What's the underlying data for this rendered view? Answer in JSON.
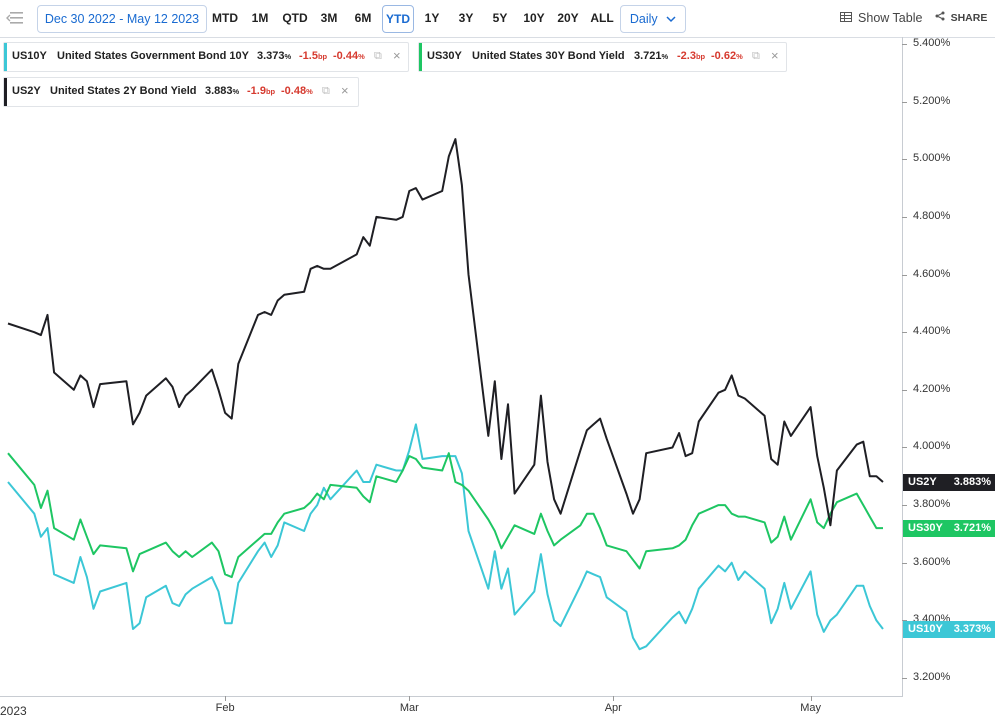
{
  "toolbar": {
    "date_range": "Dec 30 2022 - May 12 2023",
    "periods": [
      "MTD",
      "1M",
      "QTD",
      "3M",
      "6M",
      "YTD",
      "1Y",
      "3Y",
      "5Y",
      "10Y",
      "20Y",
      "ALL"
    ],
    "active_period": "YTD",
    "interval": "Daily",
    "show_table": "Show Table",
    "share": "SHARE"
  },
  "legend": [
    {
      "symbol": "US10Y",
      "name": "United States Government Bond 10Y",
      "value": "3.373",
      "change": "-1.5",
      "change_unit": "bp",
      "pct": "-0.44",
      "color": "#3cc7d6"
    },
    {
      "symbol": "US30Y",
      "name": "United States 30Y Bond Yield",
      "value": "3.721",
      "change": "-2.3",
      "change_unit": "bp",
      "pct": "-0.62",
      "color": "#1ec663"
    },
    {
      "symbol": "US2Y",
      "name": "United States 2Y Bond Yield",
      "value": "3.883",
      "change": "-1.9",
      "change_unit": "bp",
      "pct": "-0.48",
      "color": "#1f1f24"
    }
  ],
  "badges": [
    {
      "symbol": "US2Y",
      "value": "3.883%",
      "color": "#1f1f24"
    },
    {
      "symbol": "US30Y",
      "value": "3.721%",
      "color": "#1ec663"
    },
    {
      "symbol": "US10Y",
      "value": "3.373%",
      "color": "#3cc7d6"
    }
  ],
  "year_label": "2023",
  "chart_data": {
    "type": "line",
    "y_tick_labels": [
      "3.200%",
      "3.400%",
      "3.600%",
      "3.800%",
      "4.000%",
      "4.200%",
      "4.400%",
      "4.600%",
      "4.800%",
      "5.000%",
      "5.200%",
      "5.400%"
    ],
    "x_tick_labels": [
      "Feb",
      "Mar",
      "Apr",
      "May"
    ],
    "ylim": [
      3.2,
      5.4
    ],
    "grid": false,
    "x_dates": [
      "2022-12-30",
      "2023-01-03",
      "2023-01-04",
      "2023-01-05",
      "2023-01-06",
      "2023-01-09",
      "2023-01-10",
      "2023-01-11",
      "2023-01-12",
      "2023-01-13",
      "2023-01-17",
      "2023-01-18",
      "2023-01-19",
      "2023-01-20",
      "2023-01-23",
      "2023-01-24",
      "2023-01-25",
      "2023-01-26",
      "2023-01-27",
      "2023-01-30",
      "2023-01-31",
      "2023-02-01",
      "2023-02-02",
      "2023-02-03",
      "2023-02-06",
      "2023-02-07",
      "2023-02-08",
      "2023-02-09",
      "2023-02-10",
      "2023-02-13",
      "2023-02-14",
      "2023-02-15",
      "2023-02-16",
      "2023-02-17",
      "2023-02-21",
      "2023-02-22",
      "2023-02-23",
      "2023-02-24",
      "2023-02-27",
      "2023-02-28",
      "2023-03-01",
      "2023-03-02",
      "2023-03-03",
      "2023-03-06",
      "2023-03-07",
      "2023-03-08",
      "2023-03-09",
      "2023-03-10",
      "2023-03-13",
      "2023-03-14",
      "2023-03-15",
      "2023-03-16",
      "2023-03-17",
      "2023-03-20",
      "2023-03-21",
      "2023-03-22",
      "2023-03-23",
      "2023-03-24",
      "2023-03-27",
      "2023-03-28",
      "2023-03-29",
      "2023-03-30",
      "2023-03-31",
      "2023-04-03",
      "2023-04-04",
      "2023-04-05",
      "2023-04-06",
      "2023-04-10",
      "2023-04-11",
      "2023-04-12",
      "2023-04-13",
      "2023-04-14",
      "2023-04-17",
      "2023-04-18",
      "2023-04-19",
      "2023-04-20",
      "2023-04-21",
      "2023-04-24",
      "2023-04-25",
      "2023-04-26",
      "2023-04-27",
      "2023-04-28",
      "2023-05-01",
      "2023-05-02",
      "2023-05-03",
      "2023-05-04",
      "2023-05-05",
      "2023-05-08",
      "2023-05-09",
      "2023-05-10",
      "2023-05-11",
      "2023-05-12"
    ],
    "series": [
      {
        "name": "US2Y",
        "color": "#1f1f24",
        "values": [
          4.43,
          4.4,
          4.39,
          4.46,
          4.26,
          4.2,
          4.25,
          4.23,
          4.14,
          4.22,
          4.23,
          4.08,
          4.12,
          4.18,
          4.24,
          4.21,
          4.14,
          4.18,
          4.2,
          4.27,
          4.2,
          4.12,
          4.1,
          4.29,
          4.46,
          4.47,
          4.46,
          4.51,
          4.53,
          4.54,
          4.62,
          4.63,
          4.62,
          4.62,
          4.67,
          4.73,
          4.7,
          4.8,
          4.79,
          4.8,
          4.89,
          4.9,
          4.86,
          4.89,
          5.01,
          5.07,
          4.91,
          4.6,
          4.04,
          4.23,
          3.96,
          4.15,
          3.84,
          3.94,
          4.18,
          3.95,
          3.82,
          3.77,
          3.99,
          4.06,
          4.08,
          4.1,
          4.03,
          3.84,
          3.77,
          3.82,
          3.98,
          4.0,
          4.05,
          3.97,
          3.98,
          4.09,
          4.19,
          4.2,
          4.25,
          4.18,
          4.17,
          4.11,
          3.96,
          3.94,
          4.09,
          4.04,
          4.14,
          3.97,
          3.86,
          3.73,
          3.92,
          4.01,
          4.02,
          3.9,
          3.9,
          3.88
        ]
      },
      {
        "name": "US30Y",
        "color": "#1ec663",
        "values": [
          3.98,
          3.87,
          3.79,
          3.85,
          3.72,
          3.68,
          3.75,
          3.69,
          3.63,
          3.66,
          3.65,
          3.57,
          3.63,
          3.64,
          3.67,
          3.64,
          3.62,
          3.64,
          3.62,
          3.67,
          3.64,
          3.56,
          3.55,
          3.62,
          3.68,
          3.7,
          3.7,
          3.74,
          3.77,
          3.79,
          3.81,
          3.84,
          3.82,
          3.87,
          3.86,
          3.83,
          3.81,
          3.9,
          3.88,
          3.92,
          3.97,
          3.96,
          3.93,
          3.92,
          3.98,
          3.88,
          3.87,
          3.85,
          3.75,
          3.71,
          3.65,
          3.69,
          3.73,
          3.7,
          3.77,
          3.71,
          3.66,
          3.68,
          3.73,
          3.77,
          3.77,
          3.72,
          3.66,
          3.64,
          3.61,
          3.58,
          3.64,
          3.65,
          3.66,
          3.68,
          3.73,
          3.77,
          3.8,
          3.8,
          3.77,
          3.76,
          3.76,
          3.74,
          3.67,
          3.69,
          3.76,
          3.68,
          3.82,
          3.74,
          3.72,
          3.77,
          3.81,
          3.84,
          3.8,
          3.76,
          3.72,
          3.72
        ]
      },
      {
        "name": "US10Y",
        "color": "#3cc7d6",
        "values": [
          3.88,
          3.77,
          3.69,
          3.72,
          3.56,
          3.53,
          3.62,
          3.55,
          3.44,
          3.5,
          3.53,
          3.37,
          3.39,
          3.48,
          3.52,
          3.46,
          3.45,
          3.49,
          3.51,
          3.55,
          3.5,
          3.39,
          3.39,
          3.53,
          3.64,
          3.67,
          3.62,
          3.66,
          3.74,
          3.71,
          3.77,
          3.8,
          3.86,
          3.82,
          3.92,
          3.88,
          3.88,
          3.94,
          3.92,
          3.92,
          3.99,
          4.08,
          3.96,
          3.97,
          3.97,
          3.97,
          3.91,
          3.71,
          3.51,
          3.64,
          3.51,
          3.58,
          3.42,
          3.5,
          3.63,
          3.49,
          3.4,
          3.38,
          3.52,
          3.57,
          3.56,
          3.55,
          3.48,
          3.43,
          3.34,
          3.3,
          3.31,
          3.41,
          3.43,
          3.39,
          3.44,
          3.51,
          3.59,
          3.57,
          3.6,
          3.54,
          3.57,
          3.51,
          3.39,
          3.44,
          3.53,
          3.44,
          3.57,
          3.42,
          3.36,
          3.4,
          3.42,
          3.52,
          3.52,
          3.45,
          3.4,
          3.37
        ]
      }
    ]
  }
}
